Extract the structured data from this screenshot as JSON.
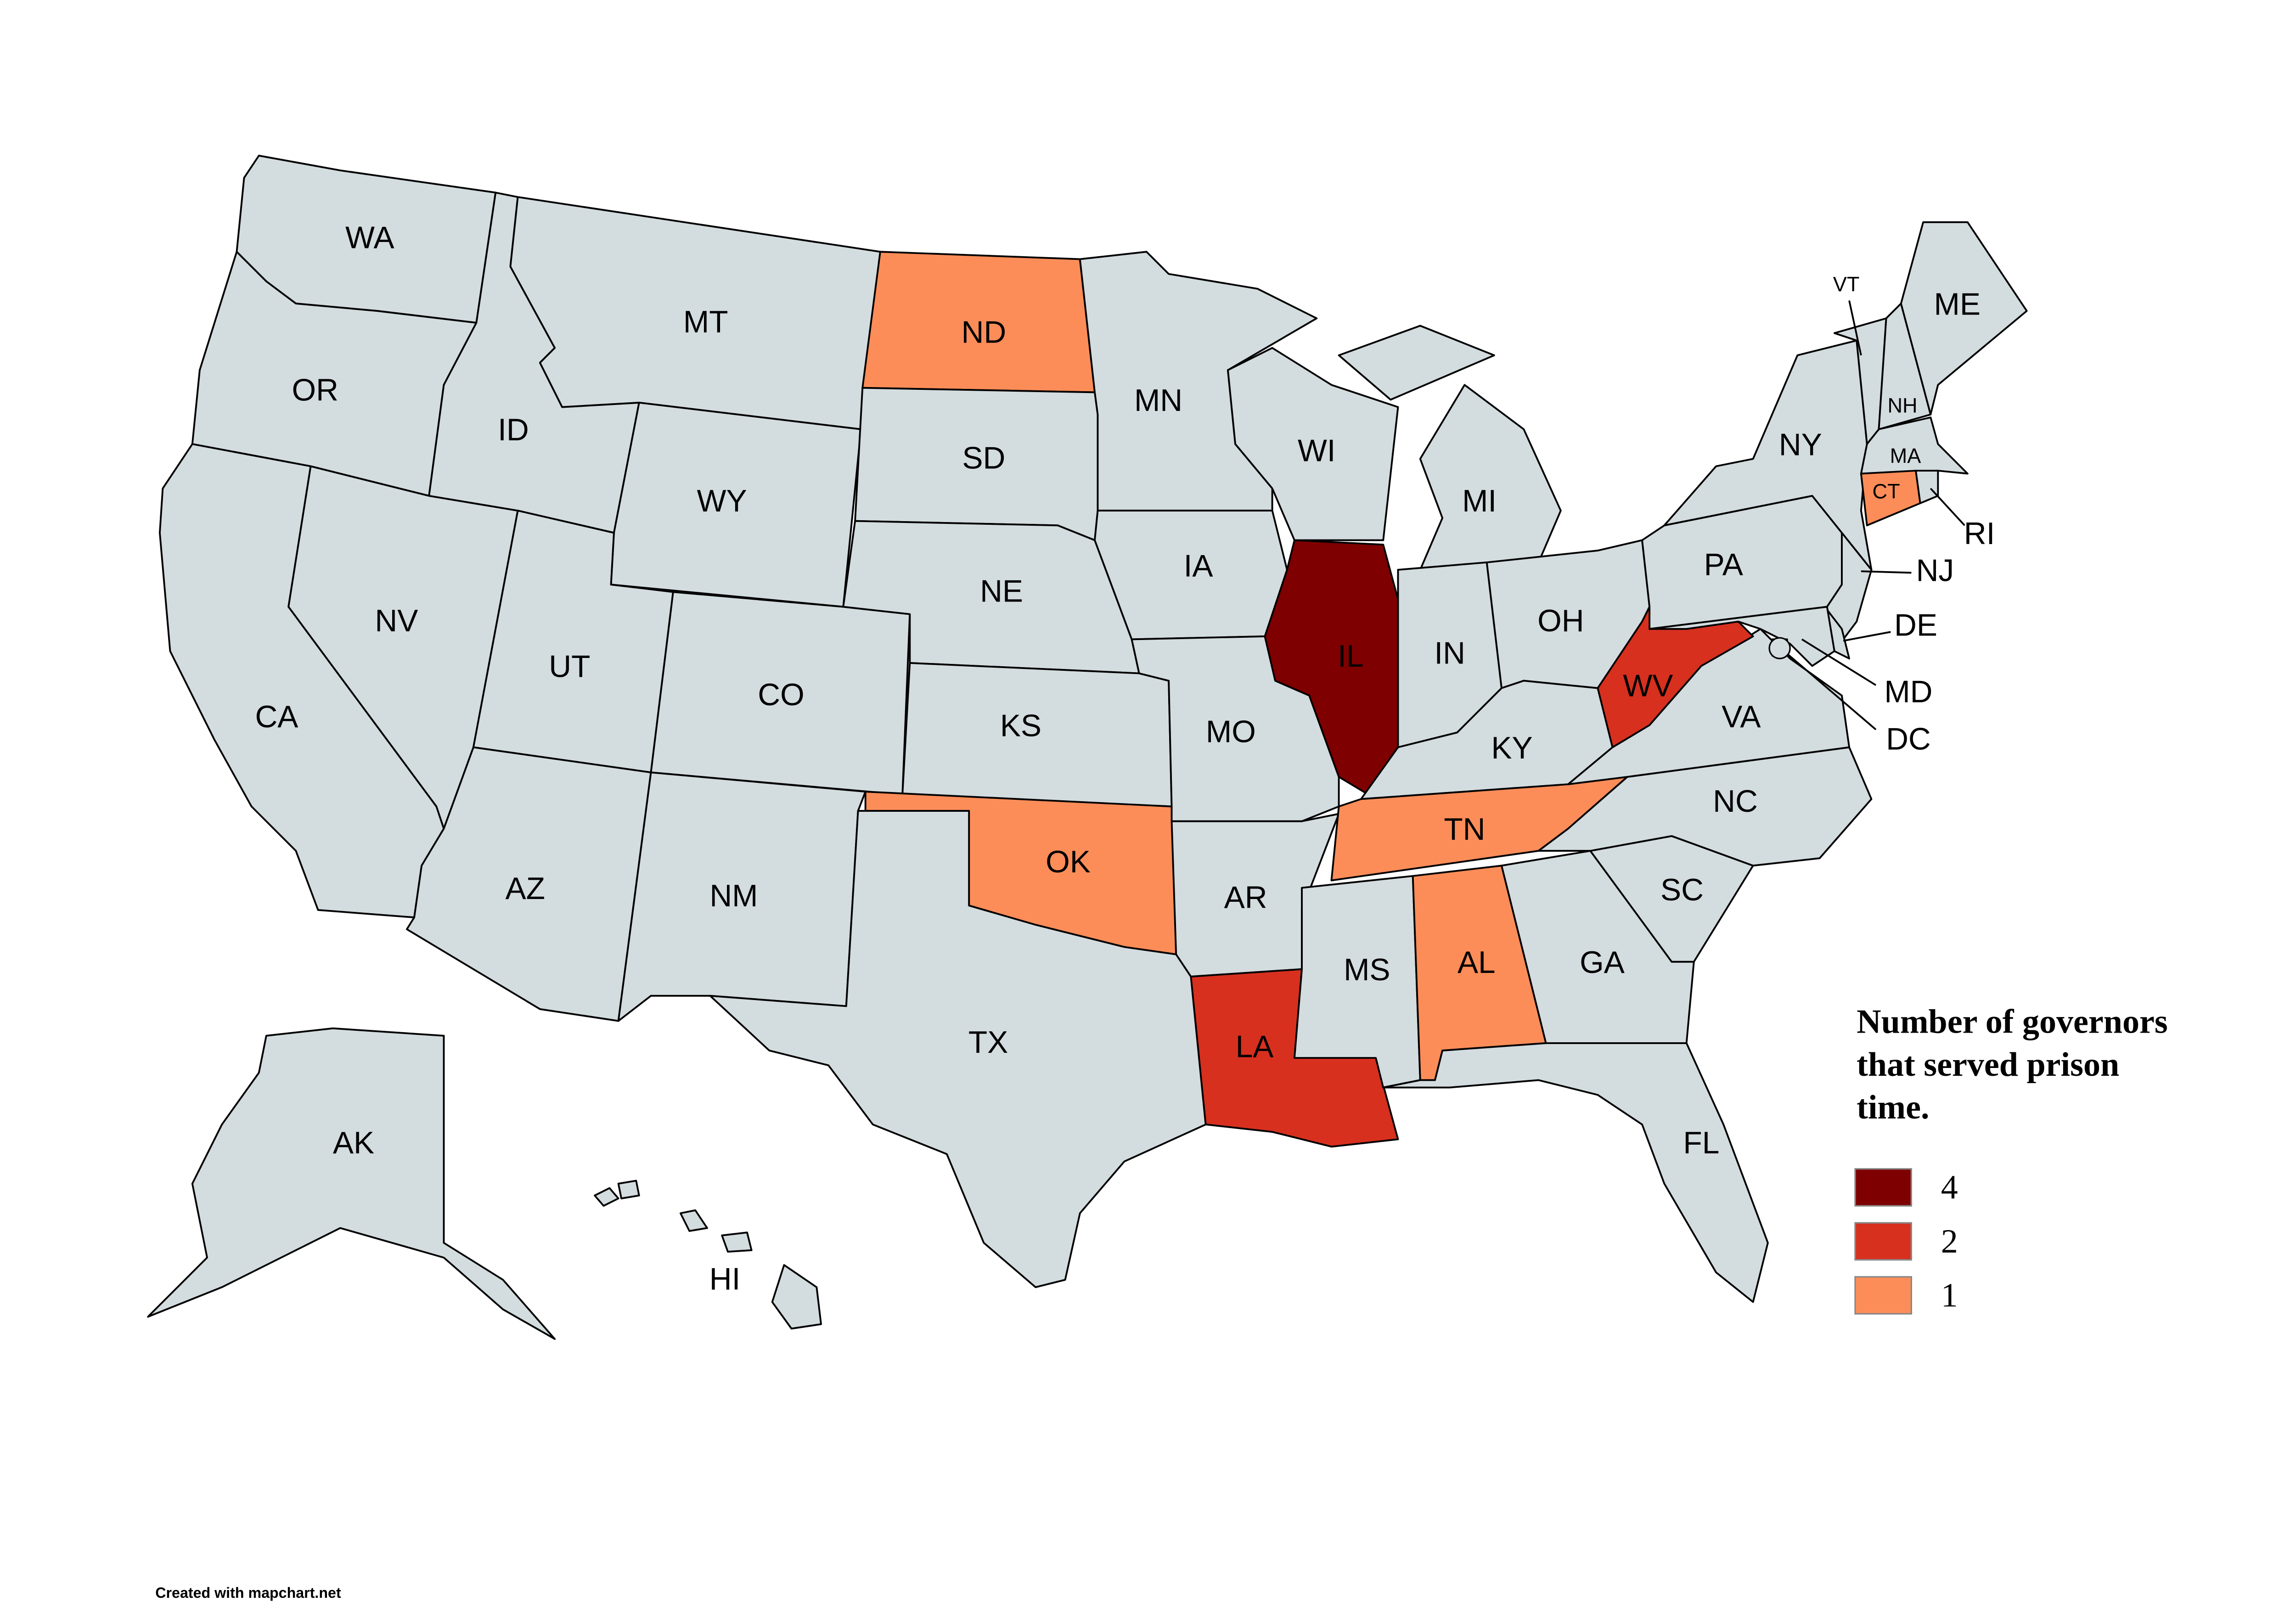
{
  "map": {
    "legend_title_lines": [
      "Number of governors",
      "that served prison",
      "time."
    ],
    "legend": [
      {
        "value": 4,
        "color": "#7f0000"
      },
      {
        "value": 2,
        "color": "#d7301f"
      },
      {
        "value": 1,
        "color": "#fc8d59"
      }
    ],
    "states": [
      {
        "abbr": "WA",
        "color": "#d3dcdf"
      },
      {
        "abbr": "OR",
        "color": "#d3dcdf"
      },
      {
        "abbr": "CA",
        "color": "#d3dcdf"
      },
      {
        "abbr": "NV",
        "color": "#d3dcdf"
      },
      {
        "abbr": "ID",
        "color": "#d3dcdf"
      },
      {
        "abbr": "MT",
        "color": "#d3dcdf"
      },
      {
        "abbr": "WY",
        "color": "#d3dcdf"
      },
      {
        "abbr": "UT",
        "color": "#d3dcdf"
      },
      {
        "abbr": "CO",
        "color": "#d3dcdf"
      },
      {
        "abbr": "AZ",
        "color": "#d3dcdf"
      },
      {
        "abbr": "NM",
        "color": "#d3dcdf"
      },
      {
        "abbr": "ND",
        "color": "#fc8d59"
      },
      {
        "abbr": "SD",
        "color": "#d3dcdf"
      },
      {
        "abbr": "NE",
        "color": "#d3dcdf"
      },
      {
        "abbr": "KS",
        "color": "#d3dcdf"
      },
      {
        "abbr": "OK",
        "color": "#fc8d59"
      },
      {
        "abbr": "TX",
        "color": "#d3dcdf"
      },
      {
        "abbr": "MN",
        "color": "#d3dcdf"
      },
      {
        "abbr": "IA",
        "color": "#d3dcdf"
      },
      {
        "abbr": "MO",
        "color": "#d3dcdf"
      },
      {
        "abbr": "AR",
        "color": "#d3dcdf"
      },
      {
        "abbr": "LA",
        "color": "#d7301f"
      },
      {
        "abbr": "WI",
        "color": "#d3dcdf"
      },
      {
        "abbr": "IL",
        "color": "#7f0000"
      },
      {
        "abbr": "MI",
        "color": "#d3dcdf"
      },
      {
        "abbr": "IN",
        "color": "#d3dcdf"
      },
      {
        "abbr": "OH",
        "color": "#d3dcdf"
      },
      {
        "abbr": "KY",
        "color": "#d3dcdf"
      },
      {
        "abbr": "TN",
        "color": "#fc8d59"
      },
      {
        "abbr": "MS",
        "color": "#d3dcdf"
      },
      {
        "abbr": "AL",
        "color": "#fc8d59"
      },
      {
        "abbr": "GA",
        "color": "#d3dcdf"
      },
      {
        "abbr": "FL",
        "color": "#d3dcdf"
      },
      {
        "abbr": "SC",
        "color": "#d3dcdf"
      },
      {
        "abbr": "NC",
        "color": "#d3dcdf"
      },
      {
        "abbr": "VA",
        "color": "#d3dcdf"
      },
      {
        "abbr": "WV",
        "color": "#d7301f"
      },
      {
        "abbr": "PA",
        "color": "#d3dcdf"
      },
      {
        "abbr": "NY",
        "color": "#d3dcdf"
      },
      {
        "abbr": "NJ",
        "color": "#d3dcdf"
      },
      {
        "abbr": "DE",
        "color": "#d3dcdf"
      },
      {
        "abbr": "MD",
        "color": "#d3dcdf"
      },
      {
        "abbr": "DC",
        "color": "#d3dcdf"
      },
      {
        "abbr": "VT",
        "color": "#d3dcdf"
      },
      {
        "abbr": "NH",
        "color": "#d3dcdf"
      },
      {
        "abbr": "MA",
        "color": "#d3dcdf"
      },
      {
        "abbr": "CT",
        "color": "#fc8d59"
      },
      {
        "abbr": "RI",
        "color": "#d3dcdf"
      },
      {
        "abbr": "ME",
        "color": "#d3dcdf"
      },
      {
        "abbr": "AK",
        "color": "#d3dcdf"
      },
      {
        "abbr": "HI",
        "color": "#d3dcdf"
      }
    ],
    "credit": "Created with mapchart.net"
  }
}
